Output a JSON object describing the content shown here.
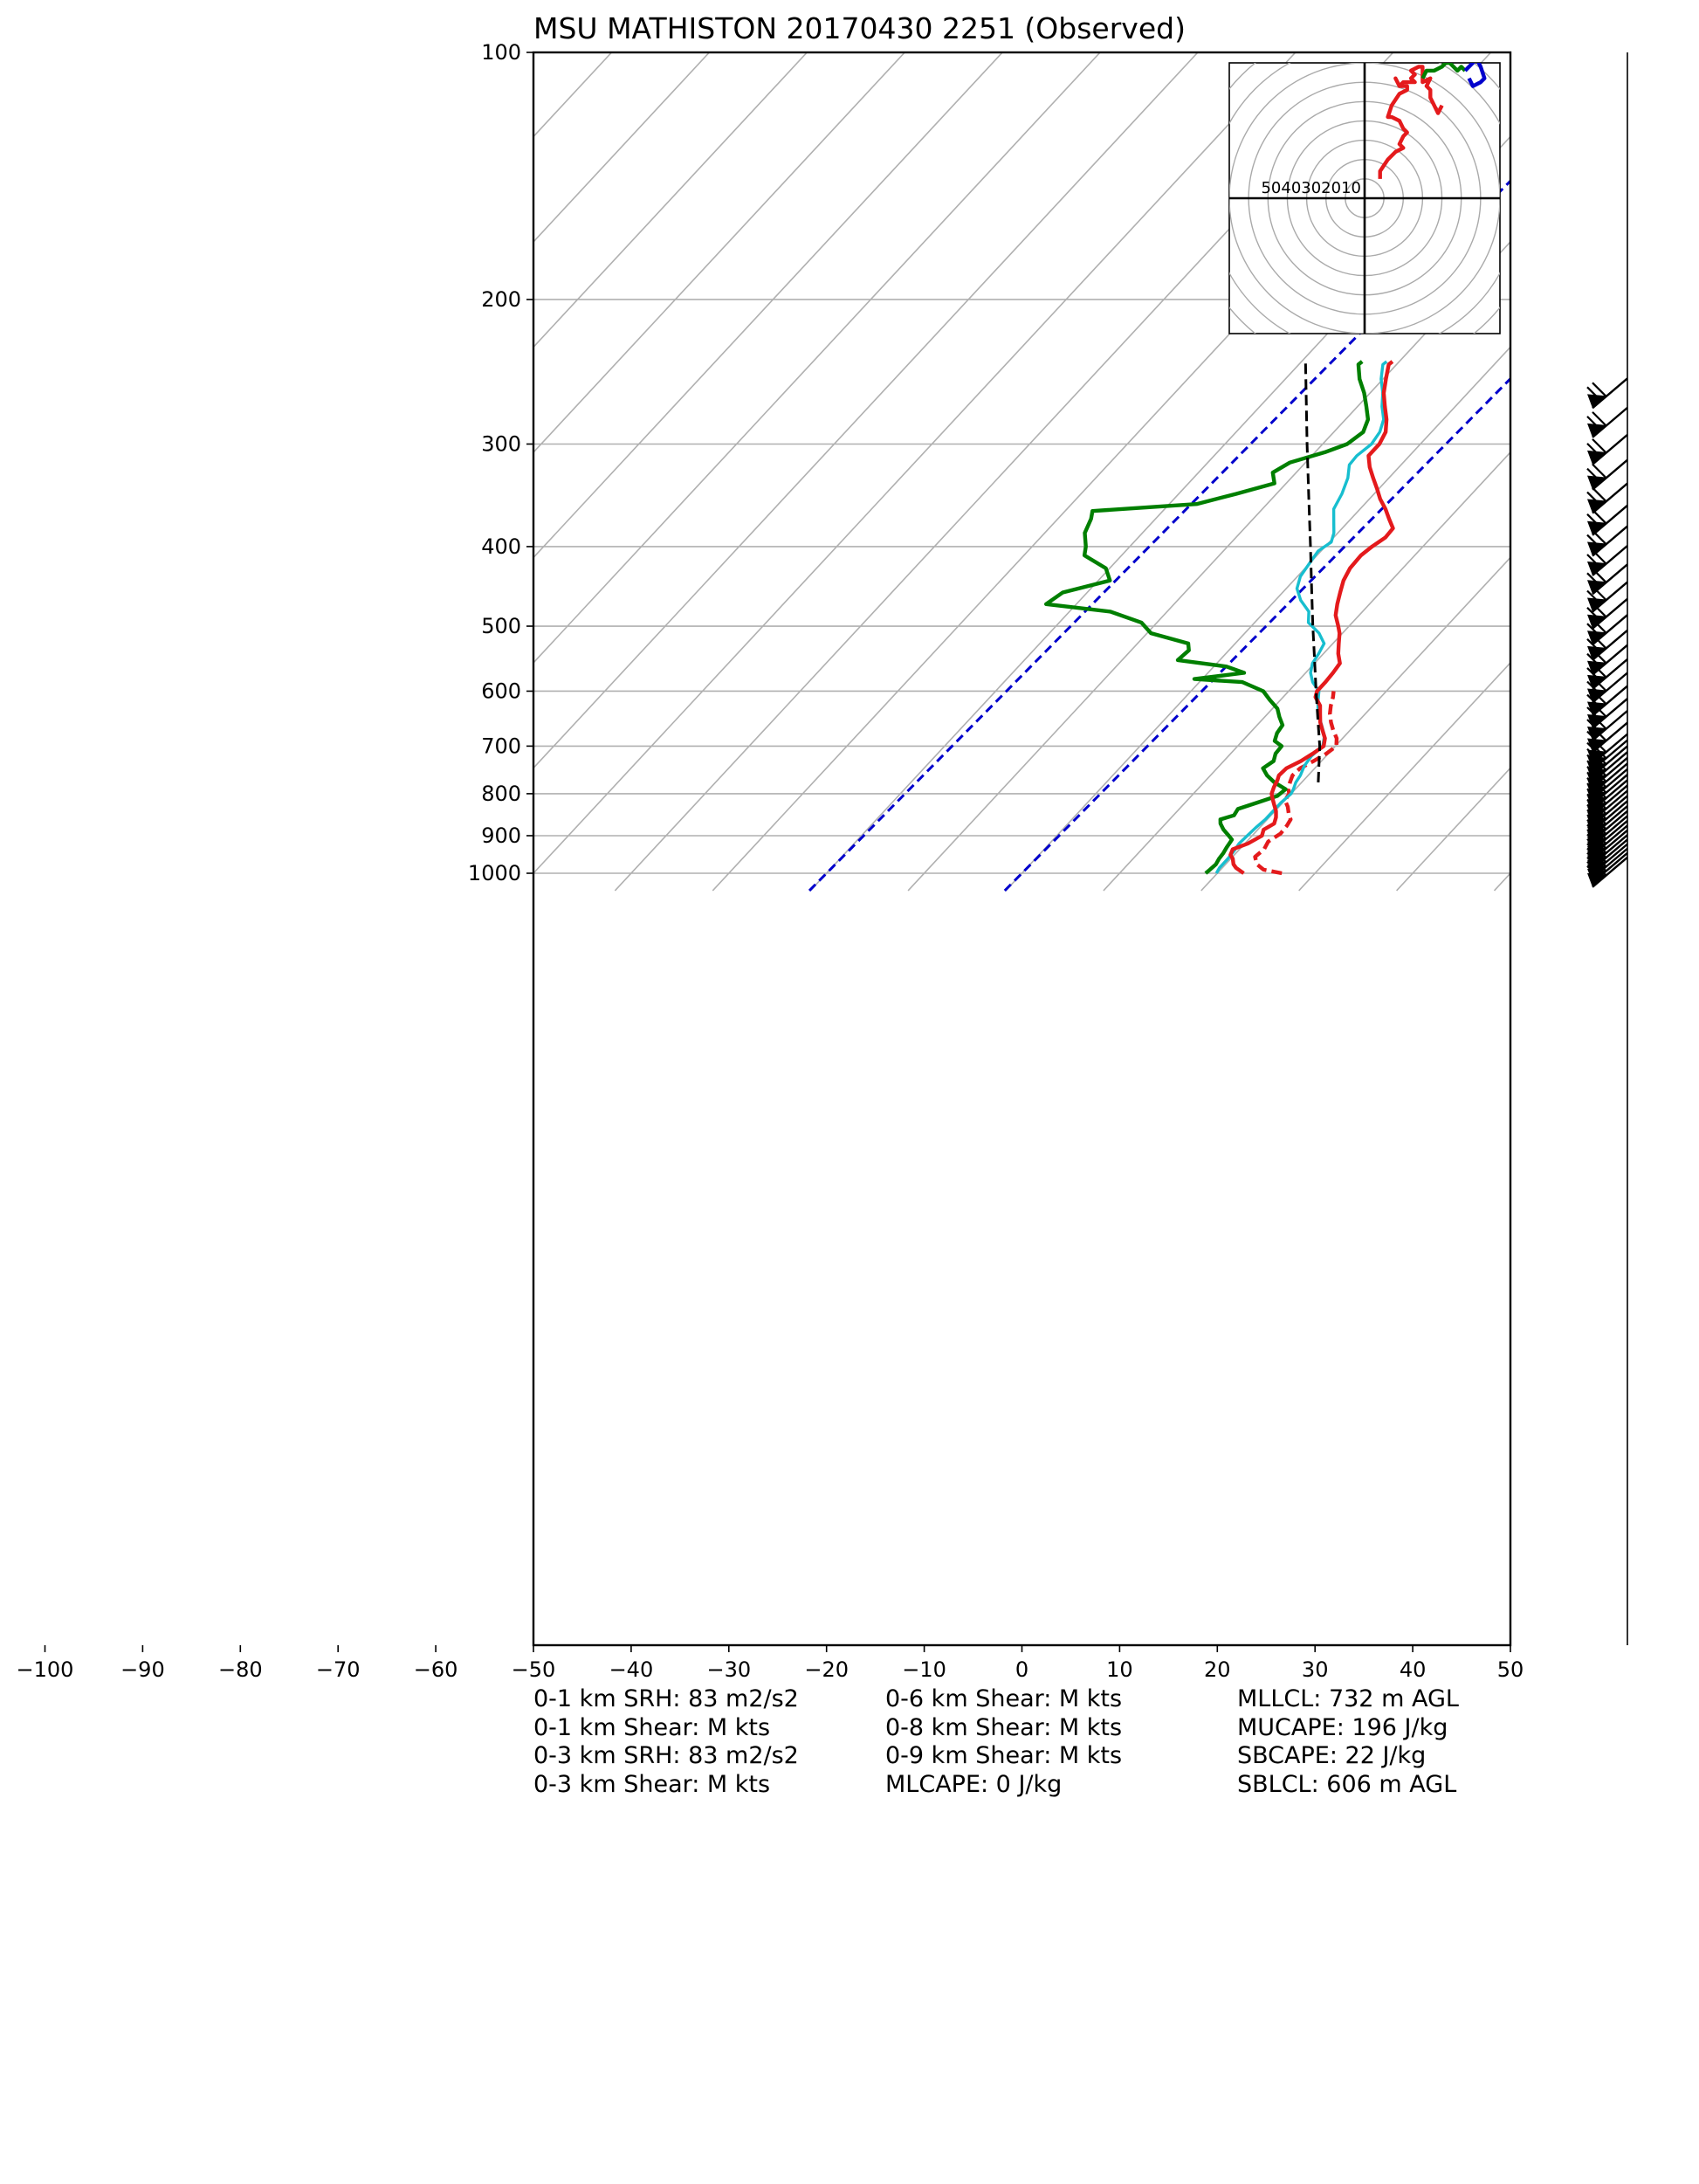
{
  "chart_data": {
    "type": "line",
    "title": "MSU MATHISTON 20170430 2251   (Observed)",
    "xlabel": "",
    "ylabel": "",
    "x_range": [
      -50,
      50
    ],
    "p_range": [
      1050,
      100
    ],
    "y_scale": "log",
    "x_ticks": [
      -100,
      -90,
      -80,
      -70,
      -60,
      -50,
      -40,
      -30,
      -20,
      -10,
      0,
      10,
      20,
      30,
      40,
      50
    ],
    "x_tick_labels": [
      "−100",
      "−90",
      "−80",
      "−70",
      "−60",
      "−50",
      "−40",
      "−30",
      "−20",
      "−10",
      "0",
      "10",
      "20",
      "30",
      "40",
      "50"
    ],
    "y_ticks": [
      1000,
      900,
      800,
      700,
      600,
      500,
      400,
      300,
      200,
      100
    ],
    "grid": true,
    "isotherm_skew_note": "skewed",
    "colors": {
      "temperature": "#e41a1c",
      "dewpoint": "#007f00",
      "wetbulb": "#17becf",
      "parcel": "#000000",
      "virtual_temperature": "#e41a1c",
      "freezing_lines": "#0000cc",
      "grid": "#b0b0b0"
    },
    "series": [
      {
        "key": "temperature",
        "style": "solid",
        "points": [
          [
            1000,
            22.7
          ],
          [
            985,
            21.4
          ],
          [
            975,
            20.8
          ],
          [
            960,
            20.2
          ],
          [
            950,
            19.6
          ],
          [
            935,
            19.3
          ],
          [
            920,
            20.3
          ],
          [
            900,
            21.0
          ],
          [
            885,
            20.6
          ],
          [
            870,
            21.1
          ],
          [
            855,
            20.7
          ],
          [
            840,
            20.1
          ],
          [
            825,
            19.3
          ],
          [
            810,
            18.5
          ],
          [
            800,
            18.0
          ],
          [
            785,
            17.6
          ],
          [
            770,
            17.3
          ],
          [
            760,
            17.0
          ],
          [
            745,
            17.1
          ],
          [
            730,
            17.9
          ],
          [
            715,
            18.4
          ],
          [
            700,
            18.8
          ],
          [
            685,
            18.2
          ],
          [
            670,
            17.2
          ],
          [
            655,
            16.2
          ],
          [
            640,
            15.4
          ],
          [
            625,
            14.6
          ],
          [
            610,
            13.3
          ],
          [
            600,
            12.9
          ],
          [
            585,
            12.9
          ],
          [
            570,
            12.8
          ],
          [
            555,
            12.6
          ],
          [
            540,
            11.5
          ],
          [
            525,
            10.6
          ],
          [
            510,
            9.7
          ],
          [
            500,
            8.9
          ],
          [
            485,
            7.6
          ],
          [
            470,
            6.7
          ],
          [
            455,
            5.9
          ],
          [
            440,
            5.1
          ],
          [
            425,
            4.6
          ],
          [
            410,
            4.5
          ],
          [
            400,
            4.8
          ],
          [
            390,
            5.3
          ],
          [
            380,
            5.2
          ],
          [
            370,
            3.9
          ],
          [
            360,
            2.6
          ],
          [
            350,
            1.1
          ],
          [
            340,
            -0.2
          ],
          [
            330,
            -1.6
          ],
          [
            320,
            -3.0
          ],
          [
            310,
            -4.2
          ],
          [
            300,
            -4.2
          ],
          [
            290,
            -4.7
          ],
          [
            280,
            -5.8
          ],
          [
            270,
            -7.2
          ],
          [
            260,
            -8.6
          ],
          [
            250,
            -9.7
          ],
          [
            240,
            -10.8
          ],
          [
            238,
            -10.7
          ]
        ]
      },
      {
        "key": "virtual_temperature",
        "style": "dashed",
        "points": [
          [
            1000,
            26.6
          ],
          [
            990,
            24.4
          ],
          [
            975,
            23.2
          ],
          [
            955,
            22.3
          ],
          [
            935,
            22.5
          ],
          [
            915,
            22.2
          ],
          [
            895,
            22.7
          ],
          [
            875,
            22.6
          ],
          [
            860,
            22.4
          ],
          [
            845,
            21.6
          ],
          [
            830,
            20.9
          ],
          [
            815,
            20.0
          ],
          [
            800,
            19.8
          ],
          [
            790,
            19.3
          ],
          [
            775,
            18.8
          ],
          [
            760,
            18.4
          ],
          [
            745,
            18.5
          ],
          [
            730,
            19.2
          ],
          [
            715,
            19.8
          ],
          [
            700,
            20.1
          ],
          [
            685,
            19.4
          ],
          [
            670,
            18.3
          ],
          [
            655,
            17.3
          ],
          [
            640,
            16.4
          ],
          [
            625,
            15.7
          ],
          [
            610,
            15.1
          ],
          [
            600,
            14.6
          ]
        ]
      },
      {
        "key": "wetbulb",
        "style": "solid",
        "points": [
          [
            1000,
            19.9
          ],
          [
            985,
            19.7
          ],
          [
            960,
            19.7
          ],
          [
            940,
            19.6
          ],
          [
            920,
            19.4
          ],
          [
            900,
            19.5
          ],
          [
            880,
            19.6
          ],
          [
            860,
            19.8
          ],
          [
            840,
            19.8
          ],
          [
            820,
            19.8
          ],
          [
            800,
            20.0
          ],
          [
            790,
            19.8
          ],
          [
            775,
            19.4
          ],
          [
            760,
            19.2
          ],
          [
            740,
            18.7
          ],
          [
            720,
            18.5
          ],
          [
            700,
            18.7
          ],
          [
            680,
            17.9
          ],
          [
            660,
            16.6
          ],
          [
            640,
            15.2
          ],
          [
            620,
            14.1
          ],
          [
            600,
            13.1
          ],
          [
            585,
            11.6
          ],
          [
            570,
            10.5
          ],
          [
            555,
            9.8
          ],
          [
            540,
            9.5
          ],
          [
            525,
            9.1
          ],
          [
            510,
            7.6
          ],
          [
            495,
            5.5
          ],
          [
            480,
            4.5
          ],
          [
            465,
            2.6
          ],
          [
            450,
            1.1
          ],
          [
            435,
            0.3
          ],
          [
            420,
            0.0
          ],
          [
            405,
            -0.3
          ],
          [
            395,
            0.2
          ],
          [
            385,
            -0.4
          ],
          [
            375,
            -1.3
          ],
          [
            360,
            -2.7
          ],
          [
            345,
            -3.3
          ],
          [
            330,
            -4.2
          ],
          [
            318,
            -5.3
          ],
          [
            310,
            -5.4
          ],
          [
            300,
            -5.0
          ],
          [
            290,
            -5.3
          ],
          [
            280,
            -6.1
          ],
          [
            270,
            -7.5
          ],
          [
            260,
            -8.7
          ],
          [
            250,
            -10.2
          ],
          [
            240,
            -11.4
          ],
          [
            238,
            -11.3
          ]
        ]
      },
      {
        "key": "dewpoint",
        "style": "solid",
        "points": [
          [
            1000,
            18.8
          ],
          [
            990,
            18.9
          ],
          [
            975,
            19.0
          ],
          [
            960,
            18.8
          ],
          [
            945,
            18.7
          ],
          [
            930,
            18.5
          ],
          [
            920,
            18.4
          ],
          [
            910,
            18.3
          ],
          [
            900,
            17.6
          ],
          [
            885,
            16.5
          ],
          [
            870,
            15.6
          ],
          [
            860,
            15.2
          ],
          [
            850,
            16.2
          ],
          [
            835,
            16.0
          ],
          [
            820,
            17.4
          ],
          [
            805,
            18.8
          ],
          [
            790,
            19.0
          ],
          [
            775,
            17.2
          ],
          [
            760,
            15.8
          ],
          [
            745,
            14.7
          ],
          [
            730,
            15.1
          ],
          [
            715,
            14.6
          ],
          [
            700,
            14.5
          ],
          [
            690,
            13.3
          ],
          [
            675,
            12.8
          ],
          [
            660,
            12.6
          ],
          [
            645,
            11.5
          ],
          [
            630,
            10.5
          ],
          [
            615,
            8.9
          ],
          [
            600,
            7.4
          ],
          [
            585,
            4.4
          ],
          [
            580,
            -0.8
          ],
          [
            570,
            3.7
          ],
          [
            560,
            1.3
          ],
          [
            550,
            -4.3
          ],
          [
            535,
            -4.1
          ],
          [
            525,
            -4.8
          ],
          [
            510,
            -9.6
          ],
          [
            495,
            -11.6
          ],
          [
            480,
            -15.8
          ],
          [
            470,
            -23.1
          ],
          [
            455,
            -22.5
          ],
          [
            440,
            -18.8
          ],
          [
            425,
            -20.4
          ],
          [
            410,
            -23.8
          ],
          [
            400,
            -24.5
          ],
          [
            385,
            -25.9
          ],
          [
            370,
            -26.6
          ],
          [
            362,
            -27.2
          ],
          [
            355,
            -17.2
          ],
          [
            345,
            -14.1
          ],
          [
            335,
            -11.2
          ],
          [
            325,
            -12.4
          ],
          [
            316,
            -11.6
          ],
          [
            307,
            -9.0
          ],
          [
            300,
            -7.5
          ],
          [
            290,
            -7.0
          ],
          [
            280,
            -7.7
          ],
          [
            270,
            -9.1
          ],
          [
            260,
            -10.6
          ],
          [
            250,
            -12.4
          ],
          [
            240,
            -13.9
          ],
          [
            238,
            -13.8
          ]
        ]
      },
      {
        "key": "parcel",
        "style": "dashed",
        "points": [
          [
            775,
            21.7
          ],
          [
            700,
            18.4
          ],
          [
            650,
            15.7
          ],
          [
            600,
            12.8
          ],
          [
            550,
            9.7
          ],
          [
            500,
            6.3
          ],
          [
            450,
            2.6
          ],
          [
            400,
            -1.5
          ],
          [
            350,
            -6.2
          ],
          [
            300,
            -11.6
          ],
          [
            250,
            -17.9
          ],
          [
            238,
            -19.6
          ]
        ]
      }
    ],
    "freezing_lines": [
      {
        "t_at_1000": -20,
        "t_at_100": 63
      },
      {
        "t_at_1000": 0,
        "t_at_100": 83
      }
    ],
    "wind_barbs_note": "",
    "hodograph": {
      "ring_labels": [
        "50",
        "40",
        "30",
        "20",
        "10"
      ],
      "u_range": [
        -35,
        35
      ],
      "v_range": [
        -35,
        35
      ],
      "segments": [
        {
          "color": "#e41a1c",
          "points": [
            [
              4,
              5
            ],
            [
              4,
              7
            ],
            [
              6,
              10
            ],
            [
              8,
              12
            ],
            [
              10,
              13
            ],
            [
              9,
              14
            ],
            [
              10,
              16
            ],
            [
              11,
              17
            ],
            [
              10,
              18
            ],
            [
              9,
              20
            ],
            [
              7,
              21
            ],
            [
              6,
              21
            ],
            [
              7,
              24
            ],
            [
              9,
              27
            ],
            [
              11,
              28
            ],
            [
              11,
              29
            ],
            [
              9,
              29
            ],
            [
              8,
              31
            ],
            [
              9,
              29
            ],
            [
              10,
              30
            ],
            [
              11,
              30
            ],
            [
              13,
              30
            ],
            [
              12,
              31
            ],
            [
              13,
              32
            ],
            [
              12,
              33
            ],
            [
              14,
              34
            ],
            [
              15,
              34
            ],
            [
              15,
              30
            ],
            [
              17,
              31
            ],
            [
              16,
              29
            ],
            [
              17,
              28
            ],
            [
              17,
              26
            ],
            [
              18,
              24
            ],
            [
              19,
              22
            ],
            [
              20,
              24
            ]
          ]
        },
        {
          "color": "#007f00",
          "points": [
            [
              15,
              31
            ],
            [
              16,
              33
            ],
            [
              18,
              33
            ],
            [
              20,
              34
            ],
            [
              21,
              35
            ],
            [
              22,
              35
            ],
            [
              24,
              33
            ],
            [
              25,
              34
            ],
            [
              26,
              33
            ]
          ]
        },
        {
          "color": "#0000cc",
          "points": [
            [
              26,
              33
            ],
            [
              28,
              35
            ],
            [
              29,
              36
            ],
            [
              30,
              34
            ],
            [
              31,
              31
            ],
            [
              30,
              30
            ],
            [
              28,
              29
            ],
            [
              27,
              31
            ]
          ]
        }
      ]
    },
    "stats": {
      "col1": [
        "0-1 km SRH: 83 m2/s2",
        "0-1 km Shear: M kts",
        "0-3 km SRH: 83 m2/s2",
        "0-3 km Shear: M kts"
      ],
      "col2": [
        "0-6 km Shear: M kts",
        "0-8 km Shear: M kts",
        "0-9 km Shear: M kts",
        "MLCAPE: 0 J/kg"
      ],
      "col3": [
        "MLLCL: 732 m AGL",
        "MUCAPE: 196 J/kg",
        "SBCAPE: 22 J/kg",
        "SBLCL: 606 m AGL"
      ]
    }
  }
}
